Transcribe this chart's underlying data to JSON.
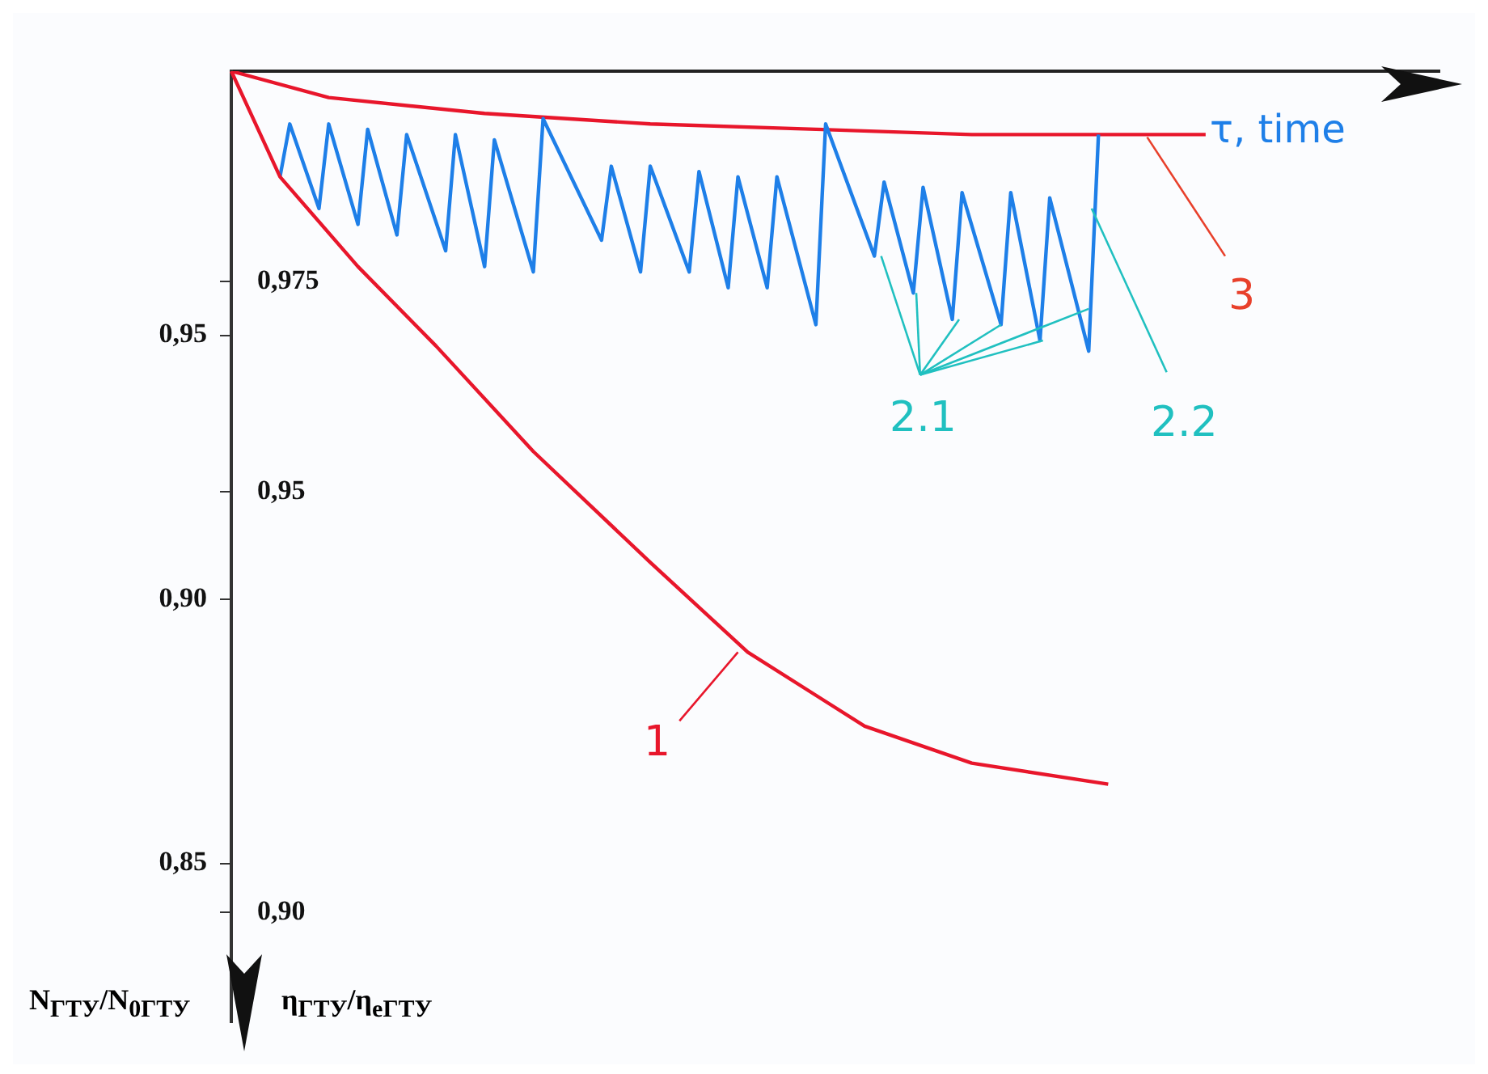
{
  "chart_data": {
    "type": "line",
    "xlabel": "τ, time",
    "ylabel": "N$_{ГТУ}$/N$_{0ГТУ}$",
    "y2label": "η$_{ГТУ}$/η$_{eГТУ}$",
    "categories": [
      null,
      null,
      null,
      null,
      null,
      null,
      null,
      null,
      null,
      null,
      null,
      null,
      null,
      null,
      null,
      null,
      null,
      null,
      null,
      null,
      null,
      null,
      null,
      null,
      null,
      null,
      null,
      null,
      null,
      null,
      null,
      null,
      null,
      null,
      null,
      null,
      null,
      null,
      null,
      null,
      null,
      null,
      null,
      null,
      null,
      null,
      null,
      null,
      null,
      null,
      null,
      null,
      null,
      null,
      null,
      null,
      null,
      null,
      null,
      null,
      null,
      null,
      null,
      null,
      null,
      null,
      null,
      null,
      null,
      null,
      null,
      null,
      null,
      null,
      null,
      null,
      null,
      null,
      null,
      null,
      null,
      null,
      null,
      null,
      null,
      null,
      null,
      null,
      null,
      null,
      null,
      null,
      null,
      null,
      null,
      null,
      null,
      null,
      null,
      null,
      null,
      null,
      null,
      null,
      null,
      null,
      null,
      null,
      null,
      null,
      null,
      null,
      null,
      null,
      null,
      null,
      null,
      null,
      null,
      null,
      null,
      null,
      null,
      null,
      null
    ],
    "ylim": [
      0.82,
      1
    ],
    "yticks": [
      {
        "value": 0.95,
        "label": "0,95"
      },
      {
        "value": 0.9,
        "label": "0,90"
      },
      {
        "value": 0.85,
        "label": "0,85"
      }
    ],
    "y2lim": [
      0.887,
      1
    ],
    "y2ticks": [
      {
        "value": 0.975,
        "label": "0,975"
      },
      {
        "value": 0.95,
        "label": "0,95"
      },
      {
        "value": 0.9,
        "label": "0,90"
      }
    ],
    "tick_labels": "y",
    "grid": false,
    "marker": "none",
    "line_style": "solid",
    "series": [
      {
        "color": "#e8162b",
        "values": [
          1.0,
          null,
          null,
          null,
          null,
          0.98,
          null,
          null,
          null,
          null,
          null,
          null,
          null,
          0.963,
          null,
          null,
          null,
          null,
          null,
          null,
          null,
          0.948,
          null,
          null,
          null,
          null,
          null,
          null,
          null,
          null,
          null,
          0.928,
          null,
          null,
          null,
          null,
          null,
          null,
          null,
          null,
          null,
          null,
          null,
          0.907,
          null,
          null,
          null,
          null,
          null,
          null,
          null,
          null,
          null,
          0.89,
          null,
          null,
          null,
          null,
          null,
          null,
          null,
          null,
          null,
          null,
          null,
          0.876,
          null,
          null,
          null,
          null,
          null,
          null,
          null,
          null,
          null,
          null,
          0.869,
          null,
          null,
          null,
          null,
          null,
          null,
          null,
          null,
          null,
          null,
          null,
          null,
          null,
          0.865,
          null,
          null,
          null,
          null,
          null,
          null,
          null,
          null,
          null,
          null,
          null,
          null,
          null,
          null,
          null,
          null,
          null,
          null,
          null,
          null,
          null,
          null,
          null,
          null,
          null,
          null,
          null,
          null,
          null,
          null,
          null,
          null,
          null,
          null
        ]
      },
      {
        "color": "#1e7fe8",
        "values": [
          null,
          null,
          null,
          null,
          null,
          0.98,
          0.99,
          null,
          null,
          0.974,
          0.99,
          null,
          null,
          0.971,
          0.989,
          null,
          null,
          0.969,
          0.988,
          null,
          null,
          null,
          0.966,
          0.988,
          null,
          null,
          0.963,
          0.987,
          null,
          null,
          null,
          0.962,
          0.991,
          null,
          null,
          null,
          null,
          null,
          0.968,
          0.982,
          null,
          null,
          0.962,
          0.982,
          null,
          null,
          null,
          0.962,
          0.981,
          null,
          null,
          0.959,
          0.98,
          null,
          null,
          0.959,
          0.98,
          null,
          null,
          null,
          0.952,
          0.99,
          null,
          null,
          null,
          null,
          0.965,
          0.979,
          null,
          null,
          0.958,
          0.978,
          null,
          null,
          0.953,
          0.977,
          null,
          null,
          null,
          0.952,
          0.977,
          null,
          null,
          0.949,
          0.976,
          null,
          null,
          null,
          0.947,
          0.988,
          null,
          null,
          null,
          null,
          null,
          null,
          null,
          null,
          null,
          null,
          null,
          null,
          null,
          null,
          null,
          null,
          null,
          null,
          null,
          null,
          null,
          null,
          null,
          null,
          null,
          null,
          null,
          null,
          null,
          null,
          null,
          null,
          null,
          null,
          null
        ]
      },
      {
        "color": "#e8162b",
        "values": [
          1.0,
          null,
          null,
          null,
          null,
          null,
          null,
          null,
          null,
          null,
          0.995,
          null,
          null,
          null,
          null,
          null,
          null,
          null,
          null,
          null,
          null,
          null,
          null,
          null,
          null,
          null,
          0.992,
          null,
          null,
          null,
          null,
          null,
          null,
          null,
          null,
          null,
          null,
          null,
          null,
          null,
          null,
          null,
          null,
          0.99,
          null,
          null,
          null,
          null,
          null,
          null,
          null,
          null,
          null,
          null,
          null,
          null,
          null,
          null,
          null,
          null,
          0.989,
          null,
          null,
          null,
          null,
          null,
          null,
          null,
          null,
          null,
          null,
          null,
          null,
          null,
          null,
          null,
          0.988,
          null,
          null,
          null,
          null,
          null,
          null,
          null,
          null,
          null,
          null,
          null,
          null,
          null,
          null,
          null,
          null,
          null,
          null,
          null,
          null,
          null,
          null,
          null,
          0.988,
          null,
          null,
          null,
          null,
          null,
          null,
          null,
          null,
          null,
          null,
          null,
          null,
          null,
          null,
          null,
          null,
          null,
          null,
          null,
          null,
          null,
          null,
          null,
          null
        ]
      }
    ],
    "annotations": [
      "1",
      "2.1",
      "2.2",
      "3"
    ]
  }
}
